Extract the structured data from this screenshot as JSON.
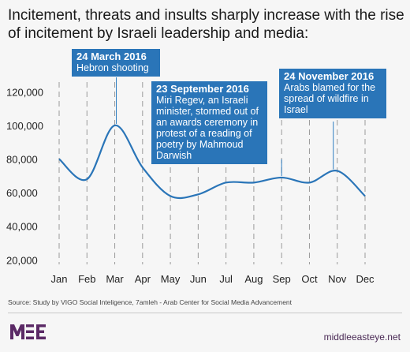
{
  "chart_data": {
    "type": "line",
    "title": "Incitement, threats and insults sharply increase with the rise of incitement by Israeli leadership and media:",
    "categories": [
      "Jan",
      "Feb",
      "Mar",
      "Apr",
      "May",
      "Jun",
      "Jul",
      "Aug",
      "Sep",
      "Oct",
      "Nov",
      "Dec"
    ],
    "values": [
      80000,
      68000,
      100000,
      75000,
      58000,
      59000,
      66000,
      66000,
      69000,
      66000,
      73000,
      58000
    ],
    "y_ticks": [
      "20,000",
      "40,000",
      "60,000",
      "80,000",
      "100,000",
      "120,000"
    ],
    "ylim": [
      15000,
      130000
    ],
    "grid": "vertical-dashed",
    "line_color": "#2a75b8",
    "annotations": [
      {
        "date": "24 March 2016",
        "text": "Hebron shooting",
        "category": "Mar"
      },
      {
        "date": "23 September 2016",
        "text": "Miri Regev, an Israeli minister, stormed out of an awards ceremony in protest of a reading of poetry by Mahmoud Darwish",
        "category": "Sep"
      },
      {
        "date": "24 November 2016",
        "text": "Arabs blamed for the spread of wildfire in Israel",
        "category": "Nov"
      }
    ],
    "source": "Source: Study by VIGO Social Inteligence, 7amleh - Arab Center for Social Media Advancement"
  },
  "footer": {
    "logo_text": "MEE",
    "logo_color": "#5b2a66",
    "site": "middleeasteye.net"
  }
}
